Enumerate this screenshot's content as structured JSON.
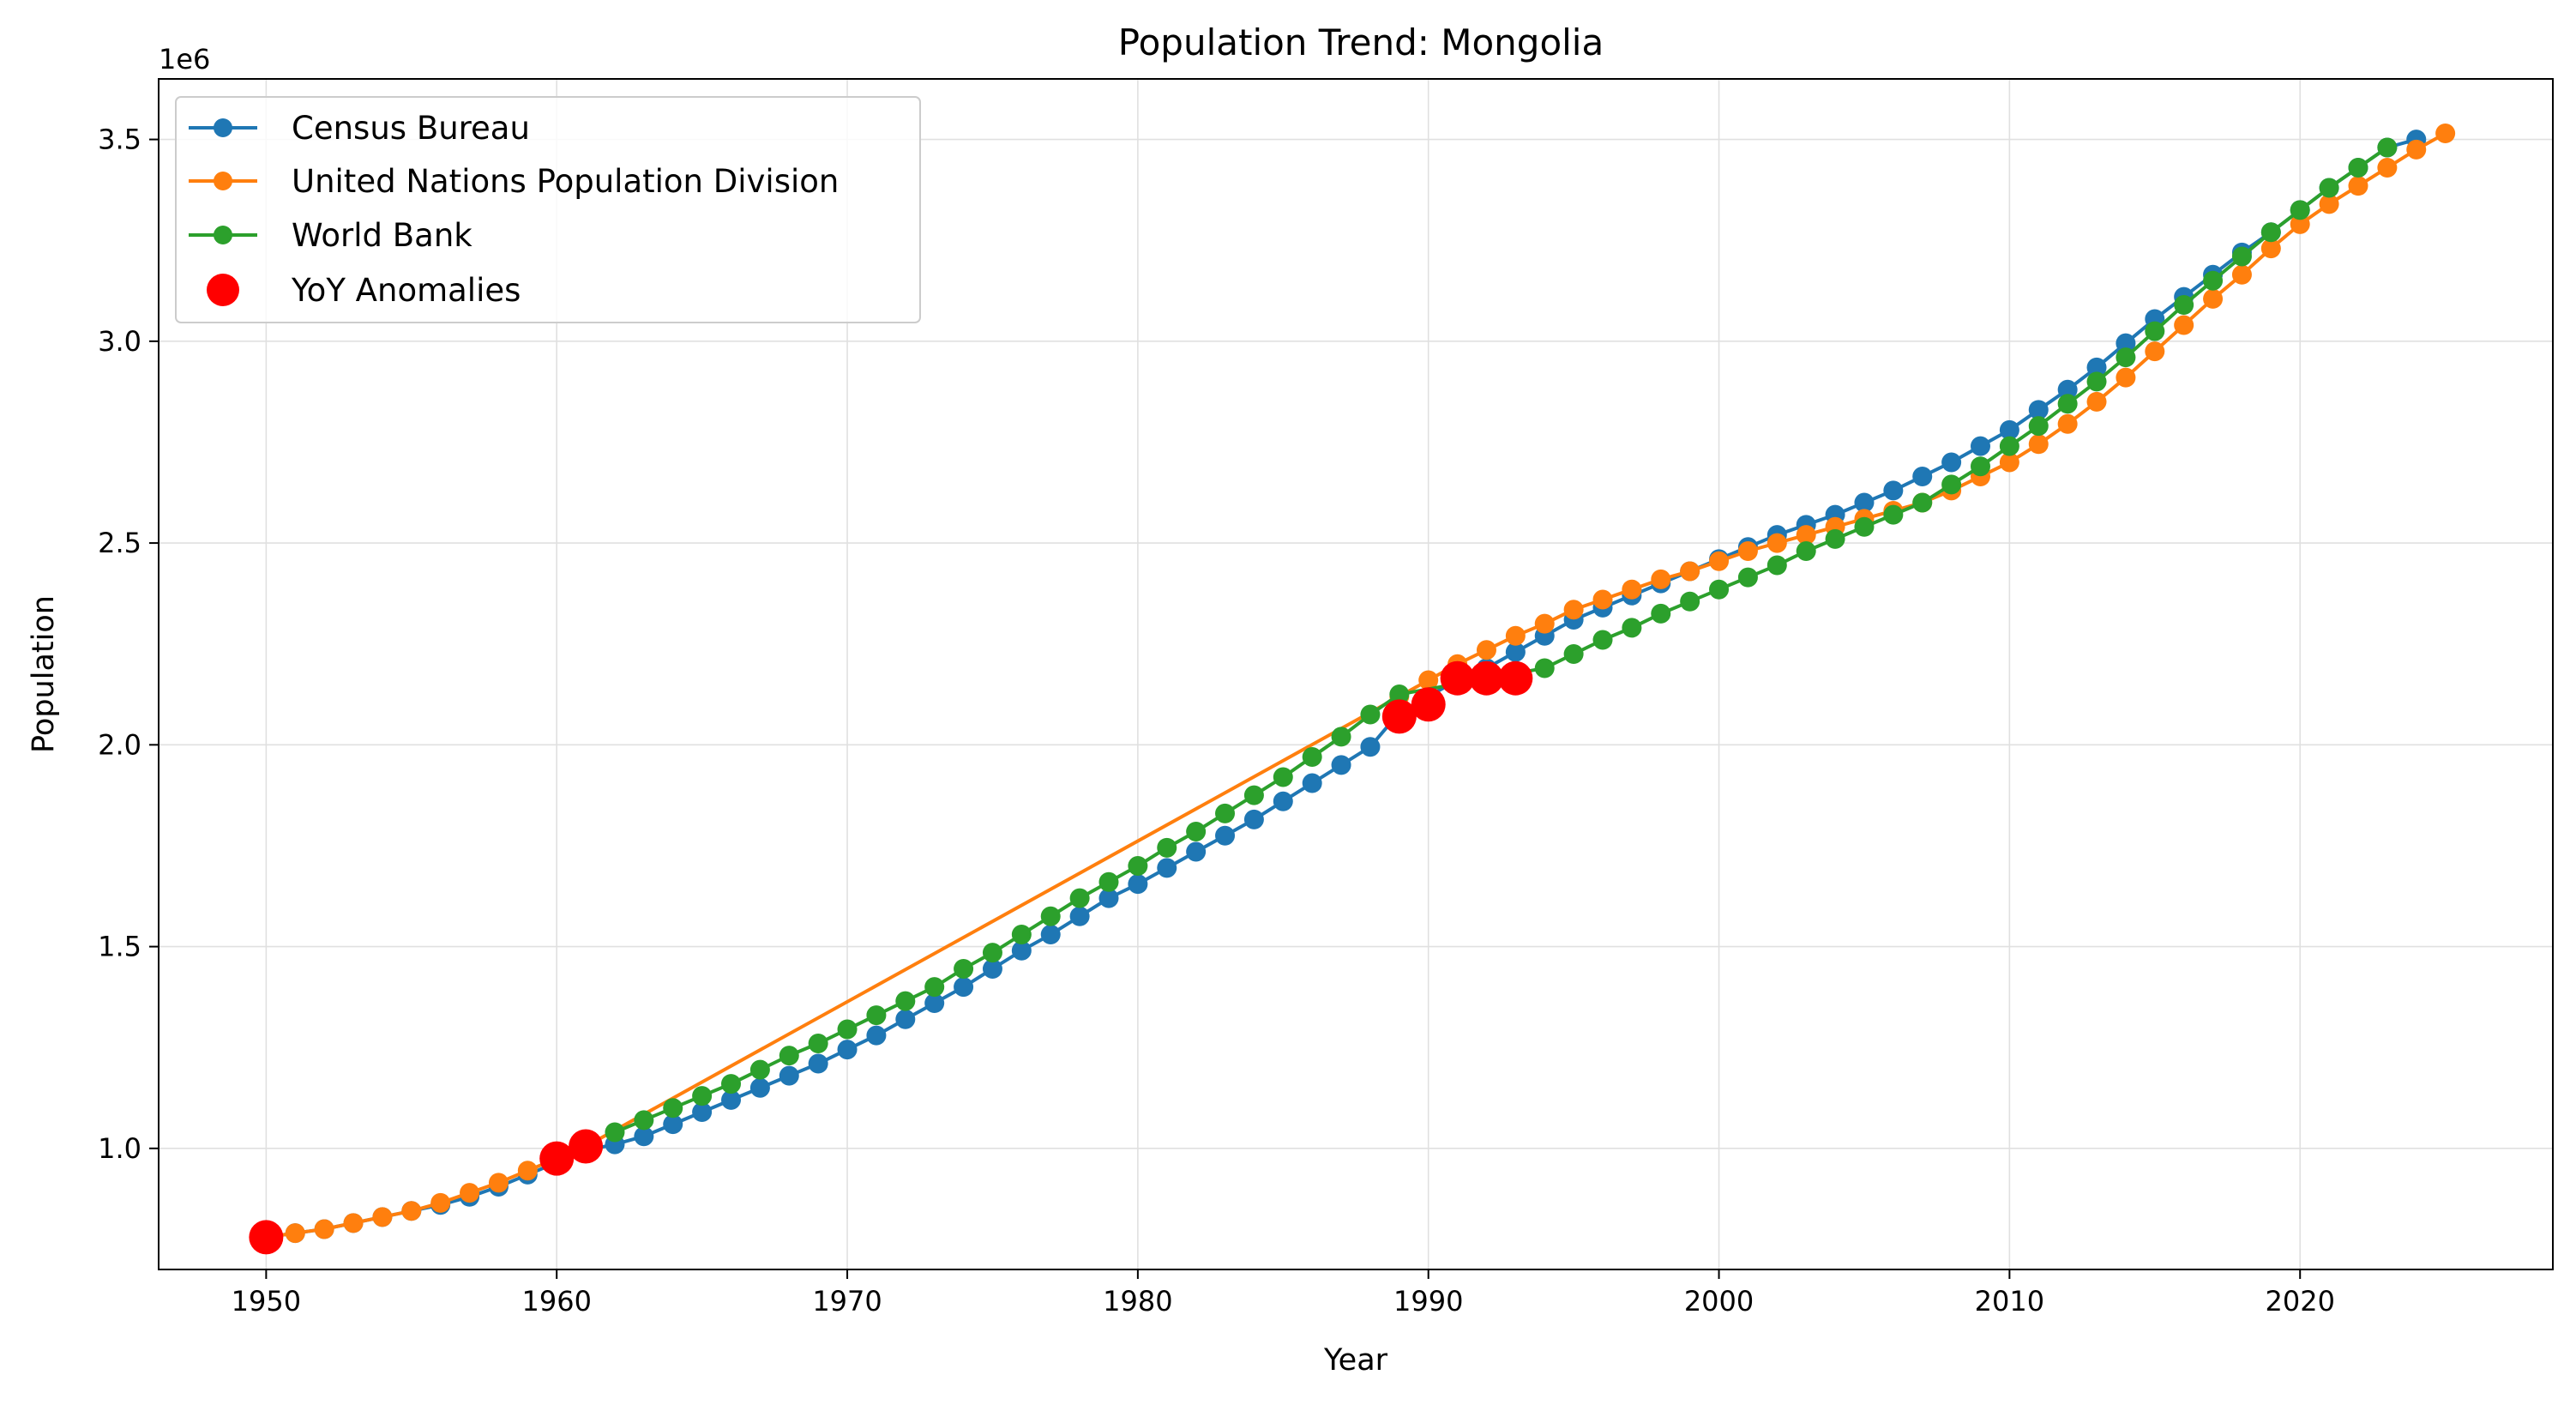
{
  "chart_data": {
    "type": "line",
    "title": "Population Trend: Mongolia",
    "xlabel": "Year",
    "ylabel": "Population",
    "y_offset_label": "1e6",
    "xlim": [
      1946.3,
      2028.7
    ],
    "ylim": [
      0.7,
      3.65
    ],
    "x_ticks": [
      1950,
      1960,
      1970,
      1980,
      1990,
      2000,
      2010,
      2020
    ],
    "x_tick_labels": [
      "1950",
      "1960",
      "1970",
      "1980",
      "1990",
      "2000",
      "2010",
      "2020"
    ],
    "y_ticks": [
      1.0,
      1.5,
      2.0,
      2.5,
      3.0,
      3.5
    ],
    "y_tick_labels": [
      "1.0",
      "1.5",
      "2.0",
      "2.5",
      "3.0",
      "3.5"
    ],
    "grid": true,
    "legend_position": "top-left",
    "legend": [
      "Census Bureau",
      "United Nations Population Division",
      "World Bank",
      "YoY Anomalies"
    ],
    "series": [
      {
        "name": "Census Bureau",
        "color": "#1f77b4",
        "x": [
          1950,
          1951,
          1952,
          1953,
          1954,
          1955,
          1956,
          1957,
          1958,
          1959,
          1960,
          1961,
          1962,
          1963,
          1964,
          1965,
          1966,
          1967,
          1968,
          1969,
          1970,
          1971,
          1972,
          1973,
          1974,
          1975,
          1976,
          1977,
          1978,
          1979,
          1980,
          1981,
          1982,
          1983,
          1984,
          1985,
          1986,
          1987,
          1988,
          1989,
          1990,
          1991,
          1992,
          1993,
          1994,
          1995,
          1996,
          1997,
          1998,
          1999,
          2000,
          2001,
          2002,
          2003,
          2004,
          2005,
          2006,
          2007,
          2008,
          2009,
          2010,
          2011,
          2012,
          2013,
          2014,
          2015,
          2016,
          2017,
          2018,
          2019,
          2020,
          2021,
          2022,
          2023,
          2024
        ],
        "y": [
          0.78,
          0.79,
          0.8,
          0.815,
          0.83,
          0.845,
          0.86,
          0.88,
          0.905,
          0.935,
          0.965,
          0.995,
          1.01,
          1.03,
          1.06,
          1.09,
          1.12,
          1.15,
          1.18,
          1.21,
          1.245,
          1.28,
          1.32,
          1.36,
          1.4,
          1.445,
          1.49,
          1.53,
          1.575,
          1.62,
          1.655,
          1.695,
          1.735,
          1.775,
          1.815,
          1.86,
          1.905,
          1.95,
          1.995,
          2.08,
          2.12,
          2.16,
          2.19,
          2.23,
          2.27,
          2.31,
          2.34,
          2.37,
          2.4,
          2.43,
          2.46,
          2.49,
          2.52,
          2.545,
          2.57,
          2.6,
          2.63,
          2.665,
          2.7,
          2.74,
          2.78,
          2.83,
          2.88,
          2.935,
          2.995,
          3.055,
          3.11,
          3.165,
          3.22,
          3.27,
          3.325,
          3.38,
          3.43,
          3.48,
          3.5
        ]
      },
      {
        "name": "United Nations Population Division",
        "color": "#ff7f0e",
        "x": [
          1950,
          1951,
          1952,
          1953,
          1954,
          1955,
          1956,
          1957,
          1958,
          1959,
          1960,
          1961,
          1989,
          1990,
          1991,
          1992,
          1993,
          1994,
          1995,
          1996,
          1997,
          1998,
          1999,
          2000,
          2001,
          2002,
          2003,
          2004,
          2005,
          2006,
          2007,
          2008,
          2009,
          2010,
          2011,
          2012,
          2013,
          2014,
          2015,
          2016,
          2017,
          2018,
          2019,
          2020,
          2021,
          2022,
          2023,
          2024,
          2025
        ],
        "y": [
          0.78,
          0.79,
          0.8,
          0.815,
          0.83,
          0.845,
          0.865,
          0.89,
          0.915,
          0.945,
          0.975,
          1.005,
          2.12,
          2.16,
          2.2,
          2.235,
          2.27,
          2.3,
          2.335,
          2.36,
          2.385,
          2.41,
          2.43,
          2.455,
          2.48,
          2.5,
          2.52,
          2.54,
          2.56,
          2.58,
          2.6,
          2.63,
          2.665,
          2.7,
          2.745,
          2.795,
          2.85,
          2.91,
          2.975,
          3.04,
          3.105,
          3.165,
          3.23,
          3.29,
          3.34,
          3.385,
          3.43,
          3.475,
          3.515
        ]
      },
      {
        "name": "World Bank",
        "color": "#2ca02c",
        "x": [
          1962,
          1963,
          1964,
          1965,
          1966,
          1967,
          1968,
          1969,
          1970,
          1971,
          1972,
          1973,
          1974,
          1975,
          1976,
          1977,
          1978,
          1979,
          1980,
          1981,
          1982,
          1983,
          1984,
          1985,
          1986,
          1987,
          1988,
          1989,
          1994,
          1995,
          1996,
          1997,
          1998,
          1999,
          2000,
          2001,
          2002,
          2003,
          2004,
          2005,
          2006,
          2007,
          2008,
          2009,
          2010,
          2011,
          2012,
          2013,
          2014,
          2015,
          2016,
          2017,
          2018,
          2019,
          2020,
          2021,
          2022,
          2023
        ],
        "y": [
          1.04,
          1.07,
          1.1,
          1.13,
          1.16,
          1.195,
          1.23,
          1.26,
          1.295,
          1.33,
          1.365,
          1.4,
          1.445,
          1.485,
          1.53,
          1.575,
          1.62,
          1.66,
          1.7,
          1.745,
          1.785,
          1.83,
          1.875,
          1.92,
          1.97,
          2.02,
          2.075,
          2.125,
          2.19,
          2.225,
          2.26,
          2.29,
          2.325,
          2.355,
          2.385,
          2.415,
          2.445,
          2.48,
          2.51,
          2.54,
          2.57,
          2.6,
          2.645,
          2.69,
          2.74,
          2.79,
          2.845,
          2.9,
          2.96,
          3.025,
          3.09,
          3.15,
          3.21,
          3.27,
          3.325,
          3.38,
          3.43,
          3.48
        ]
      }
    ],
    "anomalies": {
      "name": "YoY Anomalies",
      "color": "#ff0000",
      "x": [
        1950,
        1960,
        1961,
        1989,
        1990,
        1991,
        1992,
        1993
      ],
      "y": [
        0.78,
        0.975,
        1.005,
        2.07,
        2.1,
        2.165,
        2.165,
        2.165
      ]
    }
  }
}
